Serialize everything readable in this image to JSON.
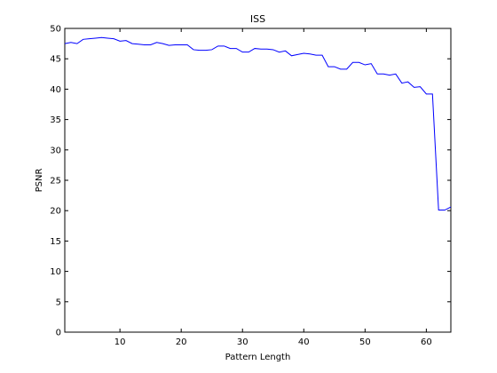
{
  "chart_data": {
    "type": "line",
    "title": "ISS",
    "xlabel": "Pattern Length",
    "ylabel": "PSNR",
    "xlim": [
      1,
      64
    ],
    "ylim": [
      0,
      50
    ],
    "x_ticks": [
      10,
      20,
      30,
      40,
      50,
      60
    ],
    "y_ticks": [
      0,
      5,
      10,
      15,
      20,
      25,
      30,
      35,
      40,
      45,
      50
    ],
    "grid": false,
    "line_color": "#0000ff",
    "series": [
      {
        "x": [
          1,
          2,
          3,
          4,
          5,
          6,
          7,
          8,
          9,
          10,
          11,
          12,
          13,
          14,
          15,
          16,
          17,
          18,
          19,
          20,
          21,
          22,
          23,
          24,
          25,
          26,
          27,
          28,
          29,
          30,
          31,
          32,
          33,
          34,
          35,
          36,
          37,
          38,
          39,
          40,
          41,
          42,
          43,
          44,
          45,
          46,
          47,
          48,
          49,
          50,
          51,
          52,
          53,
          54,
          55,
          56,
          57,
          58,
          59,
          60,
          61,
          62,
          63,
          64
        ],
        "values": [
          47.5,
          47.7,
          47.5,
          48.2,
          48.3,
          48.4,
          48.5,
          48.4,
          48.3,
          47.9,
          48.0,
          47.5,
          47.4,
          47.3,
          47.3,
          47.7,
          47.5,
          47.2,
          47.3,
          47.3,
          47.3,
          46.5,
          46.4,
          46.4,
          46.5,
          47.1,
          47.1,
          46.7,
          46.7,
          46.1,
          46.1,
          46.7,
          46.6,
          46.6,
          46.5,
          46.1,
          46.3,
          45.5,
          45.7,
          45.9,
          45.8,
          45.6,
          45.6,
          43.7,
          43.7,
          43.3,
          43.3,
          44.4,
          44.4,
          44.0,
          44.2,
          42.5,
          42.5,
          42.3,
          42.5,
          41.0,
          41.2,
          40.3,
          40.4,
          39.2,
          39.2,
          20.1,
          20.1,
          20.6
        ]
      }
    ]
  }
}
